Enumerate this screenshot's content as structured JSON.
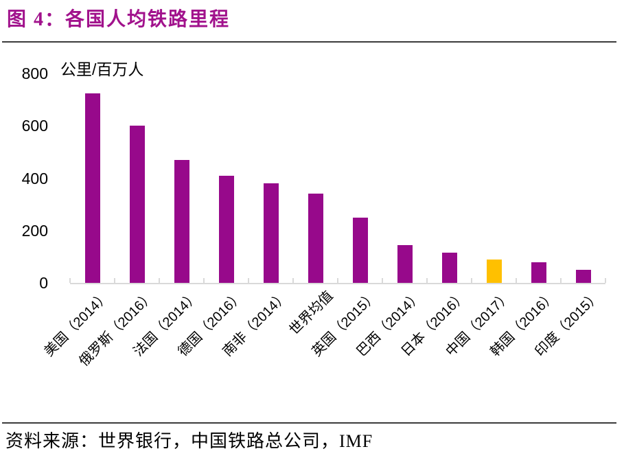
{
  "header": {
    "title": "图 4：各国人均铁路里程"
  },
  "footer": {
    "source": "资料来源：世界银行，中国铁路总公司，IMF"
  },
  "colors": {
    "title": "#A1128C",
    "bar": "#97098B",
    "highlight_bar": "#FFC000",
    "axis": "#D9D9D9",
    "rule": "#3B3B3B",
    "text": "#000000"
  },
  "chart_data": {
    "type": "bar",
    "title": "各国人均铁路里程",
    "unit_label": "公里/百万人",
    "xlabel": "",
    "ylabel": "公里/百万人",
    "categories": [
      "美国（2014）",
      "俄罗斯（2016）",
      "法国（2014）",
      "德国（2016）",
      "南非（2014）",
      "世界均值",
      "英国（2015）",
      "巴西（2014）",
      "日本（2016）",
      "中国（2017）",
      "韩国（2016）",
      "印度（2015）"
    ],
    "values": [
      725,
      600,
      470,
      410,
      380,
      340,
      250,
      145,
      115,
      88,
      78,
      50
    ],
    "highlight_index": 9,
    "bar_color": "#97098B",
    "highlight_color": "#FFC000",
    "ylim": [
      0,
      800
    ],
    "yticks": [
      0,
      200,
      400,
      600,
      800
    ],
    "grid": false,
    "legend": "none"
  }
}
